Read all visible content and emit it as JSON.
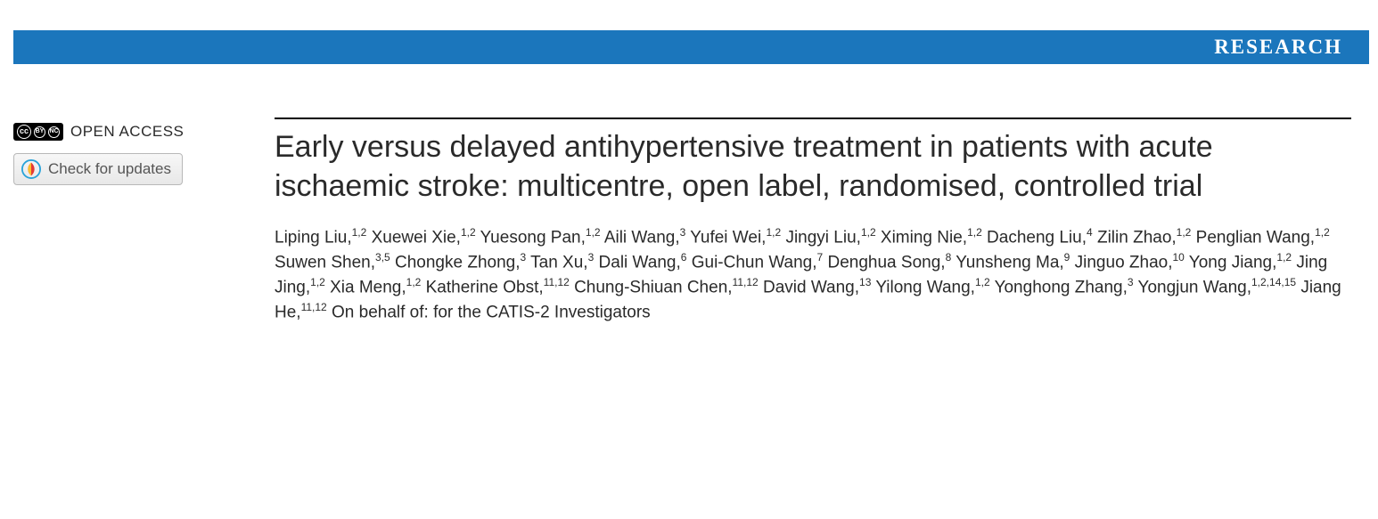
{
  "banner": {
    "label": "RESEARCH",
    "background_color": "#1b76bc",
    "text_color": "#ffffff"
  },
  "sidebar": {
    "open_access_label": "OPEN ACCESS",
    "cc_parts": [
      "cc",
      "BY",
      "NC"
    ],
    "check_updates_label": "Check for updates"
  },
  "article": {
    "title": "Early versus delayed antihypertensive treatment in patients with acute ischaemic stroke: multicentre, open label, randomised, controlled trial",
    "authors": [
      {
        "name": "Liping Liu",
        "affil": "1,2"
      },
      {
        "name": "Xuewei Xie",
        "affil": "1,2"
      },
      {
        "name": "Yuesong Pan",
        "affil": "1,2"
      },
      {
        "name": "Aili Wang",
        "affil": "3"
      },
      {
        "name": "Yufei Wei",
        "affil": "1,2"
      },
      {
        "name": "Jingyi Liu",
        "affil": "1,2"
      },
      {
        "name": "Ximing Nie",
        "affil": "1,2"
      },
      {
        "name": "Dacheng Liu",
        "affil": "4"
      },
      {
        "name": "Zilin Zhao",
        "affil": "1,2"
      },
      {
        "name": "Penglian Wang",
        "affil": "1,2"
      },
      {
        "name": "Suwen Shen",
        "affil": "3,5"
      },
      {
        "name": "Chongke Zhong",
        "affil": "3"
      },
      {
        "name": "Tan Xu",
        "affil": "3"
      },
      {
        "name": "Dali Wang",
        "affil": "6"
      },
      {
        "name": "Gui-Chun Wang",
        "affil": "7"
      },
      {
        "name": "Denghua Song",
        "affil": "8"
      },
      {
        "name": "Yunsheng Ma",
        "affil": "9"
      },
      {
        "name": "Jinguo Zhao",
        "affil": "10"
      },
      {
        "name": "Yong Jiang",
        "affil": "1,2"
      },
      {
        "name": "Jing Jing",
        "affil": "1,2"
      },
      {
        "name": "Xia Meng",
        "affil": "1,2"
      },
      {
        "name": "Katherine Obst",
        "affil": "11,12"
      },
      {
        "name": "Chung-Shiuan Chen",
        "affil": "11,12"
      },
      {
        "name": "David Wang",
        "affil": "13"
      },
      {
        "name": "Yilong Wang",
        "affil": "1,2"
      },
      {
        "name": "Yonghong Zhang",
        "affil": "3"
      },
      {
        "name": "Yongjun Wang",
        "affil": "1,2,14,15"
      },
      {
        "name": "Jiang He",
        "affil": "11,12"
      }
    ],
    "on_behalf": "On behalf of: for the CATIS-2 Investigators",
    "rule_color": "#000000",
    "title_fontsize": 34,
    "author_fontsize": 19,
    "text_color": "#2a2a2a"
  }
}
